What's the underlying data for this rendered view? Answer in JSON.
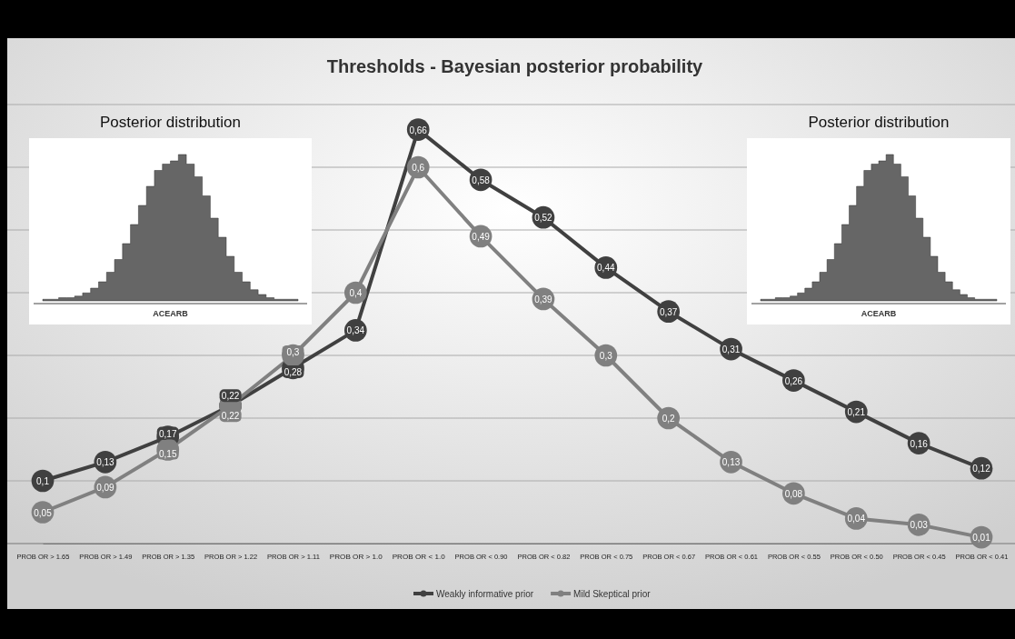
{
  "chart_data": {
    "type": "line",
    "title": "Thresholds - Bayesian posterior probability",
    "categories": [
      "PROB OR > 1.65",
      "PROB OR > 1.49",
      "PROB OR > 1.35",
      "PROB OR > 1.22",
      "PROB OR > 1.11",
      "PROB OR > 1.0",
      "PROB OR < 1.0",
      "PROB OR < 0.90",
      "PROB OR < 0.82",
      "PROB OR < 0.75",
      "PROB OR < 0.67",
      "PROB OR < 0.61",
      "PROB OR < 0.55",
      "PROB OR < 0.50",
      "PROB OR < 0.45",
      "PROB OR < 0.41"
    ],
    "series": [
      {
        "name": "Weakly informative prior",
        "color": "#404040",
        "values": [
          0.1,
          0.13,
          0.17,
          0.22,
          0.28,
          0.34,
          0.66,
          0.58,
          0.52,
          0.44,
          0.37,
          0.31,
          0.26,
          0.21,
          0.16,
          0.12
        ],
        "value_labels": [
          "0,1",
          "0,13",
          "0,17",
          "0,22",
          "0,28",
          "0,34",
          "0,66",
          "0,58",
          "0,52",
          "0,44",
          "0,37",
          "0,31",
          "0,26",
          "0,21",
          "0,16",
          "0,12"
        ]
      },
      {
        "name": "Mild Skeptical prior",
        "color": "#808080",
        "values": [
          0.05,
          0.09,
          0.15,
          0.22,
          0.3,
          0.4,
          0.6,
          0.49,
          0.39,
          0.3,
          0.2,
          0.13,
          0.08,
          0.04,
          0.03,
          0.01
        ],
        "value_labels": [
          "0,05",
          "0,09",
          "0,15",
          "0,22",
          "0,3",
          "0,4",
          "0,6",
          "0,49",
          "0,39",
          "0,3",
          "0,2",
          "0,13",
          "0,08",
          "0,04",
          "0,03",
          "0,01"
        ]
      }
    ],
    "ylim": [
      0,
      0.7
    ],
    "yticks": [
      {
        "value": 0,
        "label": null
      },
      {
        "value": 0.1,
        "label": null
      },
      {
        "value": 0.2,
        "label": null
      },
      {
        "value": 0.3,
        "label": null
      },
      {
        "value": 0.4,
        "label": null
      },
      {
        "value": 0.5,
        "label": null
      },
      {
        "value": 0.6,
        "label": null
      },
      {
        "value": 0.7,
        "label": null
      }
    ],
    "tick_labels": "x",
    "grid": "y",
    "legend": "bottom",
    "marker": "circle",
    "line_style": "solid",
    "annotations": [
      "Posterior distribution",
      "Posterior distribution",
      "ACEARB",
      "ACEARB"
    ]
  }
}
